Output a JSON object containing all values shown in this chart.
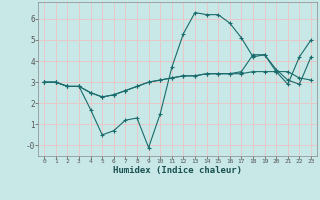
{
  "xlabel": "Humidex (Indice chaleur)",
  "bg_color": "#c8e8e8",
  "grid_color": "#e8c8c8",
  "line_color": "#1a6b6b",
  "x": [
    0,
    1,
    2,
    3,
    4,
    5,
    6,
    7,
    8,
    9,
    10,
    11,
    12,
    13,
    14,
    15,
    16,
    17,
    18,
    19,
    20,
    21,
    22,
    23
  ],
  "line1": [
    3.0,
    3.0,
    2.8,
    2.8,
    1.7,
    0.5,
    0.7,
    1.2,
    1.3,
    -0.1,
    1.5,
    3.7,
    5.3,
    6.3,
    6.2,
    6.2,
    5.8,
    5.1,
    4.2,
    4.3,
    3.6,
    3.1,
    2.9,
    4.2
  ],
  "line2": [
    3.0,
    3.0,
    2.8,
    2.8,
    2.5,
    2.3,
    2.4,
    2.6,
    2.8,
    3.0,
    3.1,
    3.2,
    3.3,
    3.3,
    3.4,
    3.4,
    3.4,
    3.4,
    3.5,
    3.5,
    3.5,
    3.5,
    3.2,
    3.1
  ],
  "line3": [
    3.0,
    3.0,
    2.8,
    2.8,
    2.5,
    2.3,
    2.4,
    2.6,
    2.8,
    3.0,
    3.1,
    3.2,
    3.3,
    3.3,
    3.4,
    3.4,
    3.4,
    3.5,
    4.3,
    4.3,
    3.5,
    2.9,
    4.2,
    5.0
  ],
  "ylim": [
    -0.5,
    6.8
  ],
  "xlim": [
    -0.5,
    23.5
  ],
  "yticks": [
    0,
    1,
    2,
    3,
    4,
    5,
    6
  ],
  "ytick_labels": [
    "-0",
    "1",
    "2",
    "3",
    "4",
    "5",
    "6"
  ]
}
